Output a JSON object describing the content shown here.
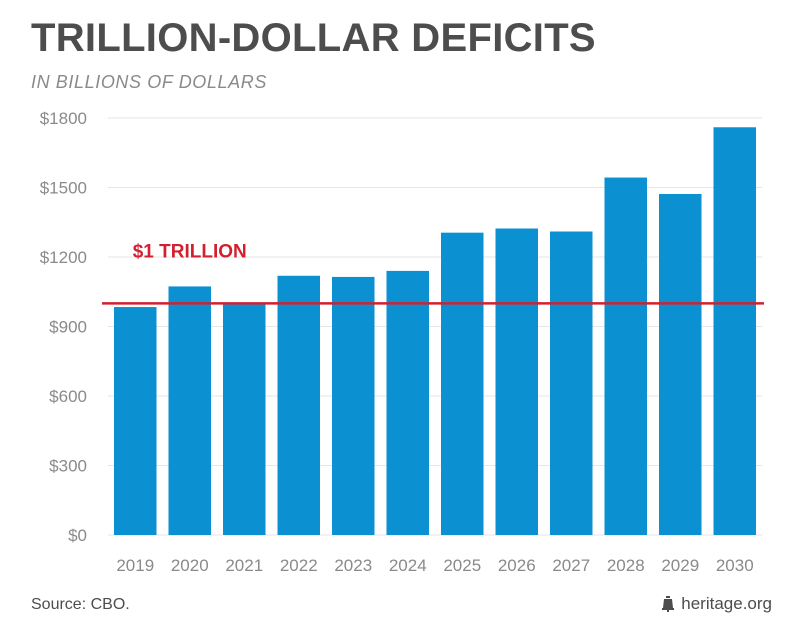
{
  "header": {
    "title": "TRILLION-DOLLAR DEFICITS",
    "subtitle": "IN BILLIONS OF DOLLARS"
  },
  "footer": {
    "source": "Source: CBO.",
    "brand": "heritage.org",
    "brand_icon": "liberty-bell-icon"
  },
  "colors": {
    "bar": "#0b90d2",
    "reference_line": "#d32030",
    "title": "#4d4d4d",
    "axis_text": "#8a8a8a",
    "grid": "#e6e6e6"
  },
  "chart_data": {
    "type": "bar",
    "title": "TRILLION-DOLLAR DEFICITS",
    "subtitle": "IN BILLIONS OF DOLLARS",
    "xlabel": "",
    "ylabel": "",
    "categories": [
      "2019",
      "2020",
      "2021",
      "2022",
      "2023",
      "2024",
      "2025",
      "2026",
      "2027",
      "2028",
      "2029",
      "2030"
    ],
    "values": [
      984,
      1073,
      1000,
      1119,
      1114,
      1140,
      1305,
      1323,
      1310,
      1543,
      1472,
      1760
    ],
    "ylim": [
      0,
      1800
    ],
    "yticks": [
      0,
      300,
      600,
      900,
      1200,
      1500,
      1800
    ],
    "ytick_labels": [
      "$0",
      "$300",
      "$600",
      "$900",
      "$1200",
      "$1500",
      "$1800"
    ],
    "grid": true,
    "reference_line": {
      "value": 1000,
      "label": "$1 TRILLION"
    },
    "legend": "none"
  }
}
